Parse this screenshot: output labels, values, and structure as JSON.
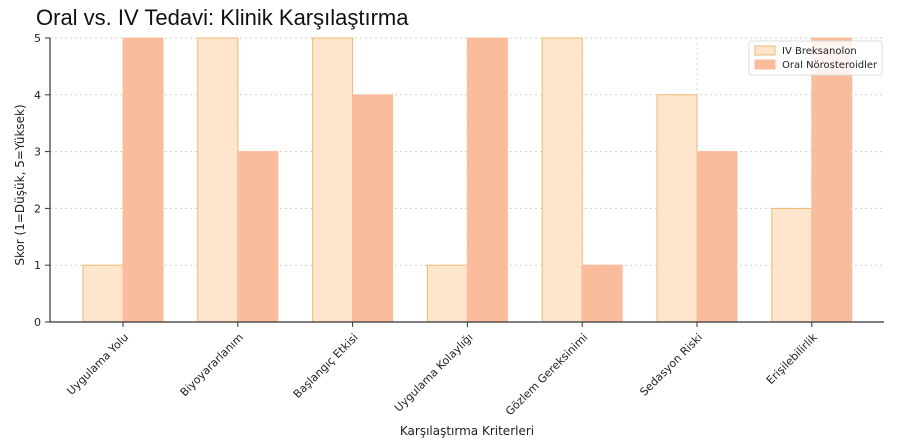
{
  "chart_data": {
    "type": "bar",
    "title": "Oral vs. IV Tedavi: Klinik Karşılaştırma",
    "xlabel": "Karşılaştırma Kriterleri",
    "ylabel": "Skor (1=Düşük, 5=Yüksek)",
    "ylim": [
      0,
      5
    ],
    "yticks": [
      0,
      1,
      2,
      3,
      4,
      5
    ],
    "grid": true,
    "legend_position": "top-right",
    "categories": [
      "Uygulama Yolu",
      "Biyoyararlanım",
      "Başlangıç Etkisi",
      "Uygulama Kolaylığı",
      "Gözlem Gereksinimi",
      "Sedasyon Riski",
      "Erişilebilirlik"
    ],
    "series": [
      {
        "name": "IV Breksanolon",
        "color": "#fde6cc",
        "edge": "#f0b870",
        "values": [
          1,
          5,
          5,
          1,
          5,
          4,
          2
        ]
      },
      {
        "name": "Oral Nörosteroidler",
        "color": "#fbbc9c",
        "edge": "#fbbc9c",
        "values": [
          5,
          3,
          4,
          5,
          1,
          3,
          5
        ]
      }
    ]
  }
}
